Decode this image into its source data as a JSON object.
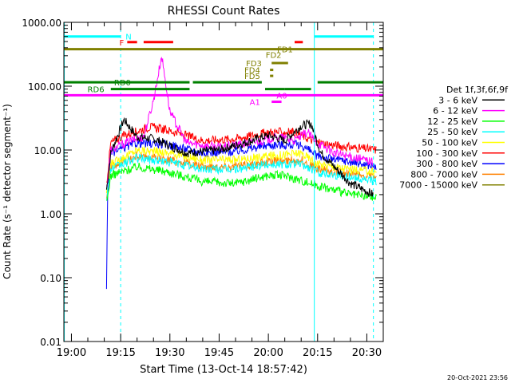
{
  "chart_data": {
    "type": "line",
    "title": "RHESSI Count Rates",
    "xlabel": "Start Time (13-Oct-14 18:57:42)",
    "ylabel": "Count Rate (s⁻¹ detector segment⁻¹)",
    "timestamp": "20-Oct-2021 23:56",
    "yscale": "log",
    "ylim": [
      0.01,
      1000
    ],
    "xlim": [
      "18:57:42",
      "20:35:00"
    ],
    "x_ticks": [
      "19:00",
      "19:15",
      "19:30",
      "19:45",
      "20:00",
      "20:15",
      "20:30"
    ],
    "y_ticks": [
      "1000.00",
      "100.00",
      "10.00",
      "1.00",
      "0.10",
      "0.01"
    ],
    "legend_title": "Det 1f,3f,6f,9f",
    "legend_position": "right",
    "series": [
      {
        "name": "3 - 6 keV",
        "color": "#000000",
        "points": [
          [
            "19:10:42",
            2.4
          ],
          [
            "19:12:00",
            9
          ],
          [
            "19:16:00",
            30
          ],
          [
            "19:20:00",
            16
          ],
          [
            "19:25:00",
            15
          ],
          [
            "19:28:00",
            13
          ],
          [
            "19:35:00",
            9
          ],
          [
            "19:45:00",
            10
          ],
          [
            "19:55:00",
            14
          ],
          [
            "20:00:00",
            17
          ],
          [
            "20:05:00",
            14
          ],
          [
            "20:10:00",
            24
          ],
          [
            "20:13:00",
            26
          ],
          [
            "20:16:00",
            9
          ],
          [
            "20:25:00",
            3
          ],
          [
            "20:32:00",
            2
          ]
        ]
      },
      {
        "name": "6 - 12 keV",
        "color": "#ff00ff",
        "points": [
          [
            "19:10:42",
            2.6
          ],
          [
            "19:12:00",
            10
          ],
          [
            "19:18:00",
            14
          ],
          [
            "19:22:00",
            16
          ],
          [
            "19:25:00",
            60
          ],
          [
            "19:27:30",
            300
          ],
          [
            "19:30:00",
            40
          ],
          [
            "19:35:00",
            13
          ],
          [
            "19:45:00",
            11
          ],
          [
            "19:55:00",
            13
          ],
          [
            "20:03:00",
            16
          ],
          [
            "20:08:00",
            14
          ],
          [
            "20:12:00",
            19
          ],
          [
            "20:14:00",
            14
          ],
          [
            "20:20:00",
            9
          ],
          [
            "20:32:00",
            6.5
          ]
        ]
      },
      {
        "name": "12 - 25 keV",
        "color": "#00ff00",
        "points": [
          [
            "19:10:42",
            1.4
          ],
          [
            "19:12:00",
            4
          ],
          [
            "19:20:00",
            5.5
          ],
          [
            "19:30:00",
            4.5
          ],
          [
            "19:40:00",
            3.2
          ],
          [
            "19:50:00",
            3
          ],
          [
            "20:00:00",
            4
          ],
          [
            "20:05:00",
            4
          ],
          [
            "20:15:00",
            2.8
          ],
          [
            "20:25:00",
            2
          ],
          [
            "20:33:00",
            1.8
          ]
        ]
      },
      {
        "name": "25 - 50 keV",
        "color": "#00ffff",
        "points": [
          [
            "19:10:42",
            1.8
          ],
          [
            "19:12:00",
            5
          ],
          [
            "19:20:00",
            7.5
          ],
          [
            "19:30:00",
            6.5
          ],
          [
            "19:40:00",
            5
          ],
          [
            "19:50:00",
            5
          ],
          [
            "20:00:00",
            6
          ],
          [
            "20:10:00",
            6
          ],
          [
            "20:15:00",
            4.5
          ],
          [
            "20:25:00",
            3.8
          ],
          [
            "20:33:00",
            3.2
          ]
        ]
      },
      {
        "name": "50 - 100 keV",
        "color": "#ffff00",
        "points": [
          [
            "19:10:42",
            2.2
          ],
          [
            "19:12:00",
            6
          ],
          [
            "19:20:00",
            10
          ],
          [
            "19:30:00",
            9
          ],
          [
            "19:40:00",
            7
          ],
          [
            "19:50:00",
            7
          ],
          [
            "20:00:00",
            8
          ],
          [
            "20:10:00",
            9
          ],
          [
            "20:15:00",
            6
          ],
          [
            "20:25:00",
            5
          ],
          [
            "20:33:00",
            4.5
          ]
        ]
      },
      {
        "name": "100 - 300 keV",
        "color": "#ff0000",
        "points": [
          [
            "19:10:42",
            3
          ],
          [
            "19:12:00",
            13
          ],
          [
            "19:16:00",
            17
          ],
          [
            "19:24:00",
            23
          ],
          [
            "19:30:00",
            20
          ],
          [
            "19:40:00",
            14
          ],
          [
            "19:50:00",
            15
          ],
          [
            "20:00:00",
            19
          ],
          [
            "20:08:00",
            19
          ],
          [
            "20:15:00",
            13
          ],
          [
            "20:25:00",
            11
          ],
          [
            "20:33:00",
            10
          ]
        ]
      },
      {
        "name": "300 - 800 keV",
        "color": "#0000ff",
        "points": [
          [
            "19:10:42",
            0.06
          ],
          [
            "19:11:00",
            2
          ],
          [
            "19:12:00",
            9
          ],
          [
            "19:20:00",
            13
          ],
          [
            "19:30:00",
            12
          ],
          [
            "19:40:00",
            9
          ],
          [
            "19:50:00",
            9.5
          ],
          [
            "20:00:00",
            12
          ],
          [
            "20:10:00",
            12
          ],
          [
            "20:15:00",
            8
          ],
          [
            "20:25:00",
            6.5
          ],
          [
            "20:33:00",
            5.5
          ]
        ]
      },
      {
        "name": "800 - 7000 keV",
        "color": "#ff8000",
        "points": [
          [
            "19:10:42",
            2
          ],
          [
            "19:12:00",
            5.5
          ],
          [
            "19:20:00",
            8
          ],
          [
            "19:30:00",
            7
          ],
          [
            "19:40:00",
            5.5
          ],
          [
            "19:50:00",
            5.5
          ],
          [
            "20:00:00",
            6.5
          ],
          [
            "20:10:00",
            7
          ],
          [
            "20:15:00",
            5
          ],
          [
            "20:25:00",
            4.2
          ],
          [
            "20:33:00",
            3.8
          ]
        ]
      },
      {
        "name": "7000 - 15000 keV",
        "color": "#808000",
        "points": []
      }
    ],
    "annotations": {
      "vertical_lines": [
        {
          "time": "18:57:50",
          "style": "solid",
          "color": "#00ffff"
        },
        {
          "time": "19:15:00",
          "style": "dashed",
          "color": "#00ffff"
        },
        {
          "time": "20:14:00",
          "style": "solid",
          "color": "#00ffff"
        },
        {
          "time": "20:32:00",
          "style": "dashed",
          "color": "#00ffff"
        }
      ],
      "flag_bars": [
        {
          "label": "N",
          "color": "#00ffff",
          "y": 600,
          "segments": [
            [
              "18:57:42",
              "19:15:00"
            ],
            [
              "20:14:00",
              "20:32:00"
            ]
          ],
          "label_time": "19:16:30",
          "label_anchor": "start"
        },
        {
          "label": "F",
          "color": "#ff0000",
          "y": 490,
          "segments": [
            [
              "19:17:00",
              "19:20:00"
            ],
            [
              "19:22:00",
              "19:31:00"
            ],
            [
              "20:08:00",
              "20:10:30"
            ]
          ],
          "label_time": "19:16:00",
          "label_anchor": "end"
        },
        {
          "label": "FD1",
          "color": "#808000",
          "y": 380,
          "segments": [
            [
              "18:57:42",
              "20:35:00"
            ]
          ],
          "label_time": "20:07:30",
          "label_anchor": "end"
        },
        {
          "label": "FD2",
          "color": "#808000",
          "y": 310,
          "segments": [],
          "label_time": "20:04:00",
          "label_anchor": "end"
        },
        {
          "label": "FD3",
          "color": "#808000",
          "y": 230,
          "segments": [
            [
              "20:01:00",
              "20:06:00"
            ]
          ],
          "label_time": "19:58:00",
          "label_anchor": "end"
        },
        {
          "label": "FD4",
          "color": "#808000",
          "y": 180,
          "segments": [
            [
              "20:00:30",
              "20:01:30"
            ]
          ],
          "label_time": "19:57:30",
          "label_anchor": "end"
        },
        {
          "label": "FD5",
          "color": "#808000",
          "y": 145,
          "segments": [
            [
              "20:00:30",
              "20:01:30"
            ]
          ],
          "label_time": "19:57:30",
          "label_anchor": "end"
        },
        {
          "label": "RD0",
          "color": "#008000",
          "y": 115,
          "segments": [
            [
              "18:57:42",
              "19:09:00"
            ],
            [
              "19:09:00",
              "19:36:00"
            ],
            [
              "19:37:00",
              "19:58:00"
            ],
            [
              "20:15:00",
              "20:35:00"
            ]
          ],
          "label_time": "19:13:00",
          "label_anchor": "start"
        },
        {
          "label": "RD6",
          "color": "#008000",
          "y": 90,
          "segments": [
            [
              "19:12:00",
              "19:36:00"
            ],
            [
              "19:59:00",
              "20:05:00"
            ],
            [
              "20:05:00",
              "20:13:00"
            ]
          ],
          "label_time": "19:10:00",
          "label_anchor": "end"
        },
        {
          "label": "A0",
          "color": "#ff00ff",
          "y": 72,
          "segments": [
            [
              "18:57:42",
              "20:35:00"
            ]
          ],
          "label_time": "20:02:30",
          "label_anchor": "start"
        },
        {
          "label": "A1",
          "color": "#ff00ff",
          "y": 57,
          "segments": [
            [
              "20:01:00",
              "20:04:00"
            ]
          ],
          "label_time": "19:57:30",
          "label_anchor": "end"
        }
      ]
    }
  }
}
